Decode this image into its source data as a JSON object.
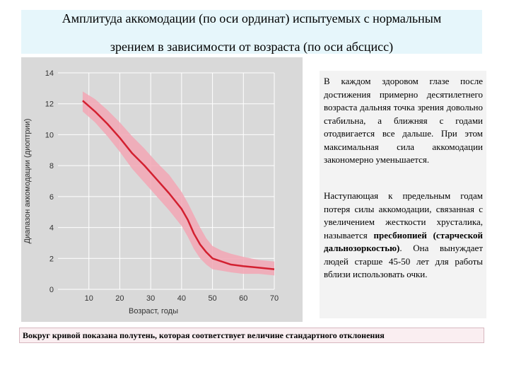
{
  "title": {
    "line1": "Амплитуда аккомодации (по оси ординат) испытуемых с нормальным",
    "line2": "зрением в зависимости от возраста (по оси абсцисс)"
  },
  "chart_data": {
    "type": "line",
    "xlabel": "Возраст, годы",
    "ylabel": "Диапазон аккомодации (диоптрии)",
    "xlim": [
      0,
      70
    ],
    "ylim": [
      0,
      14
    ],
    "x_ticks": [
      "10",
      "20",
      "30",
      "40",
      "50",
      "60",
      "70"
    ],
    "y_ticks": [
      "0",
      "2",
      "4",
      "6",
      "8",
      "10",
      "12",
      "14"
    ],
    "grid": true,
    "series": [
      {
        "x": [
          8,
          12,
          16,
          20,
          24,
          28,
          32,
          36,
          40,
          42,
          44,
          46,
          48,
          50,
          53,
          56,
          60,
          65,
          70
        ],
        "y": [
          12.2,
          11.5,
          10.7,
          9.8,
          8.8,
          8.0,
          7.1,
          6.2,
          5.2,
          4.5,
          3.6,
          2.9,
          2.4,
          2.0,
          1.8,
          1.6,
          1.5,
          1.4,
          1.3
        ],
        "band_upper": [
          12.8,
          12.3,
          11.6,
          10.8,
          9.9,
          9.1,
          8.2,
          7.4,
          6.3,
          5.6,
          4.8,
          4.0,
          3.3,
          2.8,
          2.5,
          2.3,
          2.1,
          1.9,
          1.8
        ],
        "band_lower": [
          11.5,
          10.8,
          9.9,
          8.9,
          7.8,
          6.9,
          6.0,
          5.1,
          4.1,
          3.4,
          2.6,
          2.0,
          1.6,
          1.3,
          1.2,
          1.1,
          1.0,
          1.0,
          0.9
        ]
      }
    ],
    "colors": {
      "line": "#d32030",
      "band": "#f2a6b4",
      "background": "#d9d9d9",
      "grid": "#ffffff"
    }
  },
  "description": {
    "para1": "В каждом здоровом глазе после достижения примерно десятилетнего возраста дальняя точка зрения довольно стабильна, а ближняя с годами отодвигается все дальше. При этом максимальная сила аккомодации закономерно уменьшается.",
    "para2_part1": "Наступающая к предельным годам потеря силы аккомодации, связанная с увеличением жесткости хрусталика, называется ",
    "para2_bold": "пресбиопией (старческой дальнозоркостью)",
    "para2_part2": ". Она вынуждает людей старше 45-50 лет для работы вблизи использовать очки."
  },
  "note": "Вокруг кривой показана полутень, которая соответствует величине стандартного отклонения"
}
